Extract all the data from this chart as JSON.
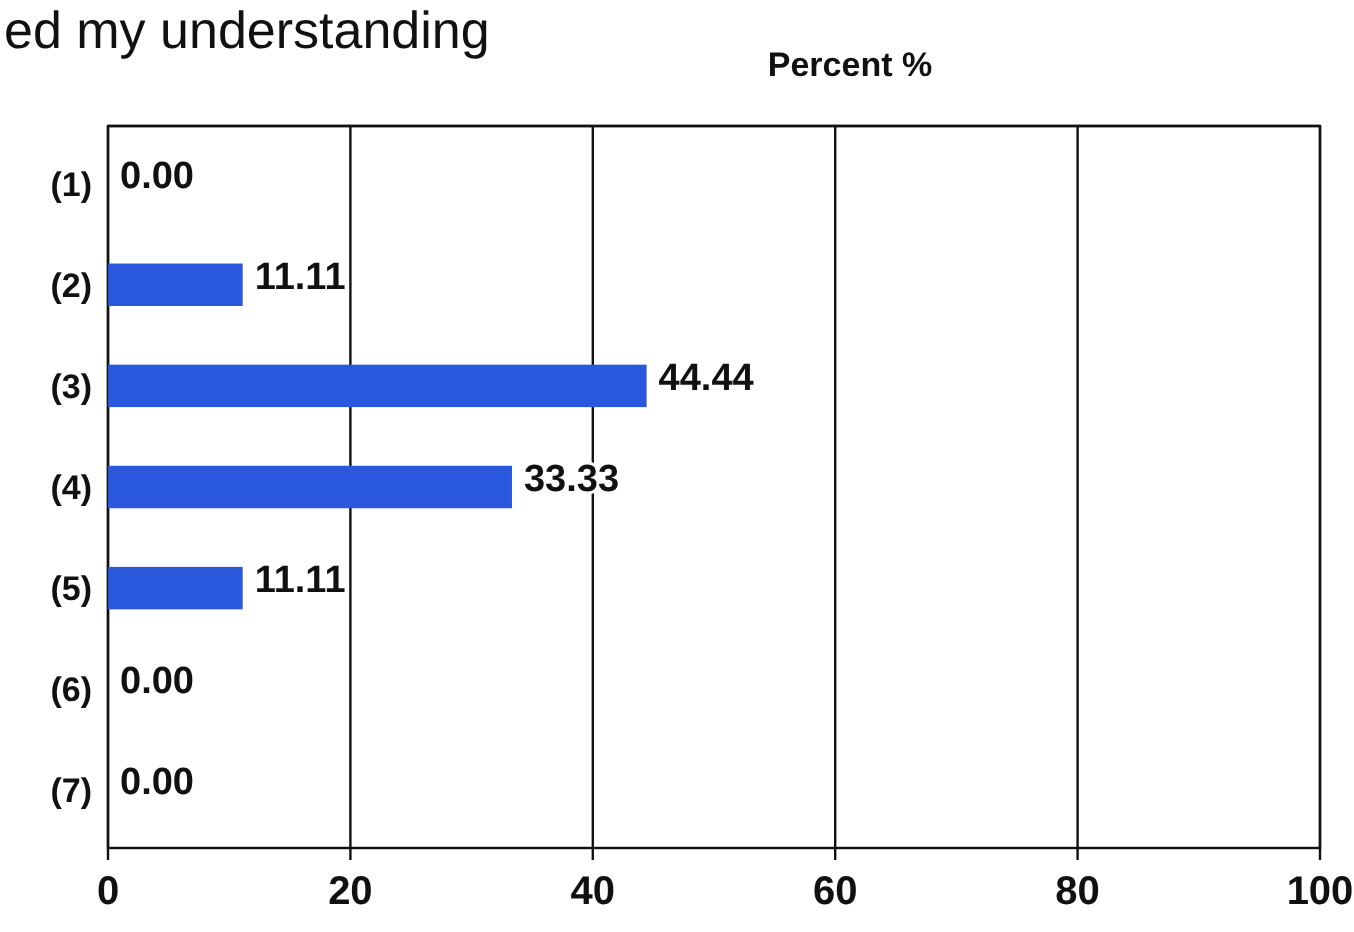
{
  "chart_data": {
    "type": "bar",
    "orientation": "horizontal",
    "title": "ed my understanding",
    "xlabel": "Percent %",
    "categories": [
      "(1)",
      "(2)",
      "(3)",
      "(4)",
      "(5)",
      "(6)",
      "(7)"
    ],
    "values": [
      0,
      11.11,
      44.44,
      33.33,
      11.11,
      0,
      0
    ],
    "value_labels": [
      "0.00",
      "11.11",
      "44.44",
      "33.33",
      "11.11",
      "0.00",
      "0.00"
    ],
    "color": "#2a58dc",
    "xlim": [
      0,
      100
    ],
    "xticks": [
      0,
      20,
      40,
      60,
      80,
      100
    ],
    "grid": "x"
  }
}
